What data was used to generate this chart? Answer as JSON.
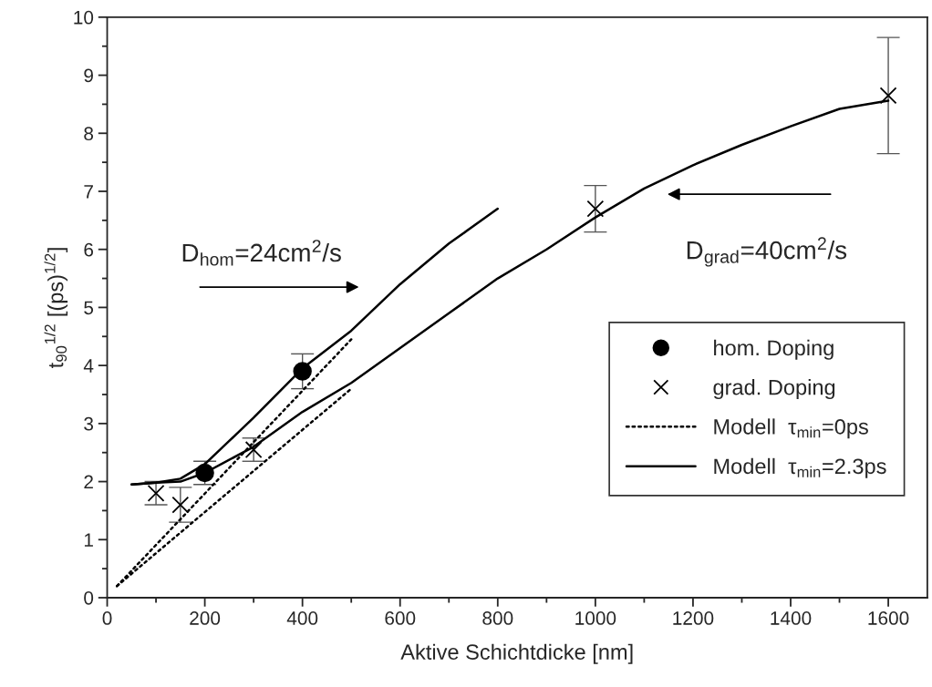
{
  "chart_data": {
    "type": "scatter",
    "xlabel": "Aktive Schichtdicke [nm]",
    "ylabel": "t$_{90}$$^{1/2}$ [(ps)$^{1/2}$]",
    "xlim": [
      0,
      1680
    ],
    "ylim": [
      0,
      10
    ],
    "xticks": [
      0,
      200,
      400,
      600,
      800,
      1000,
      1200,
      1400,
      1600
    ],
    "yticks": [
      0,
      1,
      2,
      3,
      4,
      5,
      6,
      7,
      8,
      9,
      10
    ],
    "grid": false,
    "legend": "right",
    "series": [
      {
        "name": "hom. Doping",
        "marker": "circle",
        "color": "#000000",
        "x": [
          200,
          400
        ],
        "values": [
          2.15,
          3.9
        ],
        "errors": [
          [
            1.95,
            2.35
          ],
          [
            3.6,
            4.2
          ]
        ]
      },
      {
        "name": "grad. Doping",
        "marker": "cross",
        "color": "#000000",
        "x": [
          100,
          150,
          300,
          1000,
          1600
        ],
        "values": [
          1.8,
          1.6,
          2.55,
          6.7,
          8.65
        ],
        "errors": [
          [
            1.6,
            2.0
          ],
          [
            1.3,
            1.9
          ],
          [
            2.35,
            2.75
          ],
          [
            6.3,
            7.1
          ],
          [
            7.65,
            9.65
          ]
        ]
      },
      {
        "name": "Modell  τ$_{min}$=0ps",
        "type": "line",
        "line_style": "dotted",
        "marker": "none",
        "color": "#000000",
        "x": [
          20,
          500
        ],
        "values": [
          0.2,
          4.45
        ]
      },
      {
        "type": "line",
        "line_style": "dotted",
        "marker": "none",
        "color": "#000000",
        "x": [
          20,
          500
        ],
        "values": [
          0.2,
          3.6
        ]
      },
      {
        "name": "Modell  τ$_{min}$=2.3ps",
        "type": "line",
        "line_style": "solid",
        "marker": "none",
        "color": "#000000",
        "x": [
          50,
          100,
          150,
          200,
          250,
          300,
          400,
          500,
          600,
          700,
          800
        ],
        "values": [
          1.95,
          1.98,
          2.05,
          2.3,
          2.7,
          3.1,
          3.95,
          4.6,
          5.4,
          6.1,
          6.7
        ]
      },
      {
        "type": "line",
        "line_style": "solid",
        "marker": "none",
        "color": "#000000",
        "x": [
          50,
          100,
          150,
          200,
          300,
          400,
          500,
          600,
          700,
          800,
          900,
          1000,
          1100,
          1200,
          1300,
          1400,
          1500,
          1600
        ],
        "values": [
          1.95,
          1.98,
          2.0,
          2.15,
          2.6,
          3.2,
          3.7,
          4.3,
          4.9,
          5.5,
          6.0,
          6.55,
          7.05,
          7.45,
          7.8,
          8.12,
          8.42,
          8.56
        ]
      }
    ],
    "annotations": [
      "D$_{hom}$=24cm$^{2}$/s",
      "D$_{grad}$=40cm$^{2}$/s"
    ]
  }
}
